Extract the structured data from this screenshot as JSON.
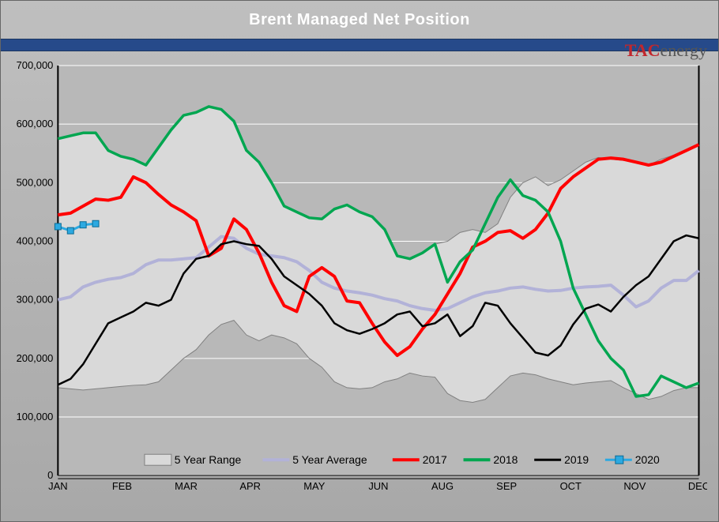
{
  "title": "Brent Managed Net Position",
  "logo": {
    "part1": "TAC",
    "part2": "energy"
  },
  "chart": {
    "type": "line-with-range",
    "background_color": "#b8b8b8",
    "grid_color": "#ffffff",
    "ylim": [
      0,
      700000
    ],
    "ytick_step": 100000,
    "yticks": [
      "0",
      "100,000",
      "200,000",
      "300,000",
      "400,000",
      "500,000",
      "600,000",
      "700,000"
    ],
    "x_categories": [
      "JAN",
      "FEB",
      "MAR",
      "APR",
      "MAY",
      "JUN",
      "AUG",
      "SEP",
      "OCT",
      "NOV",
      "DEC"
    ],
    "n_points": 52,
    "range": {
      "label": "5 Year Range",
      "upper": [
        575000,
        580000,
        585000,
        585000,
        555000,
        545000,
        540000,
        530000,
        560000,
        590000,
        615000,
        620000,
        630000,
        625000,
        605000,
        555000,
        535000,
        500000,
        460000,
        450000,
        440000,
        438000,
        455000,
        462000,
        450000,
        442000,
        420000,
        375000,
        370000,
        380000,
        395000,
        400000,
        415000,
        420000,
        415000,
        430000,
        475000,
        500000,
        510000,
        495000,
        505000,
        520000,
        535000,
        543000,
        540000,
        538000,
        535000,
        530000,
        540000,
        547000,
        555000,
        565000
      ],
      "lower": [
        150000,
        148000,
        146000,
        148000,
        150000,
        152000,
        154000,
        155000,
        160000,
        180000,
        200000,
        215000,
        240000,
        258000,
        265000,
        240000,
        230000,
        240000,
        235000,
        225000,
        200000,
        185000,
        160000,
        150000,
        148000,
        150000,
        160000,
        165000,
        175000,
        170000,
        168000,
        140000,
        128000,
        125000,
        130000,
        150000,
        170000,
        175000,
        172000,
        165000,
        160000,
        155000,
        158000,
        160000,
        162000,
        150000,
        140000,
        130000,
        135000,
        145000,
        150000,
        150000
      ],
      "fill": "#d9d9d9",
      "stroke": "#808080"
    },
    "series": [
      {
        "name": "5 Year Average",
        "label": "5 Year Average",
        "color": "#b2b2d8",
        "width": 4,
        "values": [
          300000,
          305000,
          322000,
          330000,
          335000,
          338000,
          345000,
          360000,
          368000,
          368000,
          370000,
          372000,
          390000,
          408000,
          405000,
          388000,
          378000,
          375000,
          372000,
          365000,
          350000,
          330000,
          320000,
          315000,
          312000,
          308000,
          302000,
          298000,
          290000,
          285000,
          282000,
          285000,
          295000,
          305000,
          312000,
          315000,
          320000,
          322000,
          318000,
          315000,
          316000,
          320000,
          322000,
          323000,
          325000,
          308000,
          288000,
          298000,
          320000,
          333000,
          333000,
          350000
        ]
      },
      {
        "name": "2017",
        "label": "2017",
        "color": "#ff0000",
        "width": 4,
        "values": [
          445000,
          448000,
          460000,
          472000,
          470000,
          475000,
          510000,
          500000,
          480000,
          462000,
          450000,
          435000,
          375000,
          388000,
          438000,
          420000,
          380000,
          330000,
          290000,
          280000,
          340000,
          355000,
          340000,
          298000,
          295000,
          260000,
          228000,
          205000,
          220000,
          250000,
          275000,
          310000,
          345000,
          390000,
          400000,
          415000,
          418000,
          405000,
          420000,
          448000,
          490000,
          510000,
          525000,
          540000,
          542000,
          540000,
          535000,
          530000,
          535000,
          545000,
          555000,
          565000
        ]
      },
      {
        "name": "2018",
        "label": "2018",
        "color": "#00a650",
        "width": 3.5,
        "values": [
          575000,
          580000,
          585000,
          585000,
          555000,
          545000,
          540000,
          530000,
          560000,
          590000,
          615000,
          620000,
          630000,
          625000,
          605000,
          555000,
          535000,
          500000,
          460000,
          450000,
          440000,
          438000,
          455000,
          462000,
          450000,
          442000,
          420000,
          375000,
          370000,
          380000,
          395000,
          330000,
          365000,
          385000,
          430000,
          475000,
          505000,
          478000,
          470000,
          450000,
          400000,
          320000,
          275000,
          230000,
          200000,
          180000,
          135000,
          138000,
          170000,
          160000,
          150000,
          158000
        ]
      },
      {
        "name": "2019",
        "label": "2019",
        "color": "#000000",
        "width": 2.5,
        "values": [
          155000,
          165000,
          190000,
          225000,
          260000,
          270000,
          280000,
          295000,
          290000,
          300000,
          345000,
          370000,
          375000,
          395000,
          400000,
          395000,
          392000,
          370000,
          340000,
          325000,
          310000,
          290000,
          260000,
          248000,
          242000,
          250000,
          260000,
          275000,
          280000,
          255000,
          260000,
          275000,
          238000,
          255000,
          295000,
          290000,
          260000,
          235000,
          210000,
          205000,
          222000,
          258000,
          285000,
          292000,
          280000,
          305000,
          325000,
          340000,
          370000,
          400000,
          410000,
          405000
        ]
      },
      {
        "name": "2020",
        "label": "2020",
        "color": "#2ca9e1",
        "width": 3,
        "marker": "square",
        "marker_size": 8,
        "values": [
          425000,
          418000,
          428000,
          430000
        ]
      }
    ],
    "legend": {
      "items": [
        "5 Year Range",
        "5 Year Average",
        "2017",
        "2018",
        "2019",
        "2020"
      ],
      "position": "bottom-inside"
    }
  }
}
